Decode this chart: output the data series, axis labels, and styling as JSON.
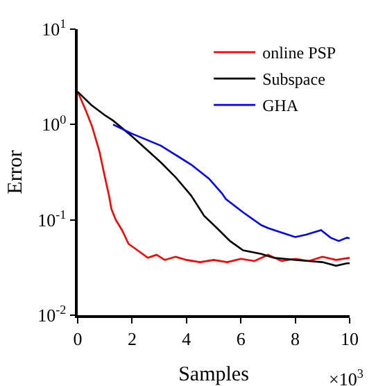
{
  "chart_data": {
    "type": "line",
    "xlabel": "Samples",
    "ylabel": "Error",
    "log": "y",
    "xlim": [
      0,
      10
    ],
    "xticks": [
      0,
      2,
      4,
      6,
      8,
      10
    ],
    "ylim": [
      0.01,
      10
    ],
    "yticks": [
      {
        "value": 0.01,
        "label": "10$^{-2}$"
      },
      {
        "value": 0.1,
        "label": "10$^{-1}$"
      },
      {
        "value": 1,
        "label": "10$^{0}$"
      },
      {
        "value": 10,
        "label": "10$^{1}$"
      }
    ],
    "annotations": [
      "×10$^{3}$"
    ],
    "grid": false,
    "legend": "top right",
    "marker": "none",
    "line_style": "solid",
    "series": [
      {
        "name": "online PSP",
        "color": "#ff0000",
        "x": [
          0,
          0.3,
          0.53,
          0.8,
          1.0,
          1.15,
          1.24,
          1.4,
          1.63,
          1.87,
          2.2,
          2.58,
          2.9,
          3.2,
          3.6,
          4.0,
          4.5,
          5.0,
          5.5,
          6.0,
          6.5,
          7.0,
          7.5,
          8.0,
          8.5,
          9.0,
          9.5,
          10
        ],
        "values": [
          2.2,
          1.4,
          0.95,
          0.52,
          0.28,
          0.18,
          0.13,
          0.1,
          0.078,
          0.056,
          0.048,
          0.04,
          0.043,
          0.038,
          0.041,
          0.038,
          0.036,
          0.038,
          0.036,
          0.039,
          0.037,
          0.043,
          0.037,
          0.039,
          0.037,
          0.041,
          0.038,
          0.04
        ]
      },
      {
        "name": "Subspace",
        "color": "#000000",
        "x": [
          0,
          0.5,
          1.0,
          1.3,
          2.0,
          3.06,
          3.6,
          4.17,
          4.65,
          5.1,
          5.6,
          6.08,
          6.75,
          7.2,
          8.0,
          8.5,
          9.0,
          9.5,
          9.9,
          10
        ],
        "values": [
          2.2,
          1.6,
          1.25,
          1.1,
          0.75,
          0.4,
          0.28,
          0.18,
          0.11,
          0.083,
          0.06,
          0.048,
          0.044,
          0.04,
          0.038,
          0.037,
          0.036,
          0.033,
          0.035,
          0.035
        ]
      },
      {
        "name": "GHA",
        "color": "#0000ff",
        "x": [
          1.3,
          2.0,
          3.06,
          3.6,
          4.17,
          4.83,
          5.3,
          5.45,
          6.08,
          6.75,
          7.0,
          7.4,
          8.0,
          8.4,
          8.95,
          9.3,
          9.6,
          9.9,
          10
        ],
        "values": [
          1.0,
          0.8,
          0.6,
          0.48,
          0.38,
          0.27,
          0.19,
          0.165,
          0.12,
          0.088,
          0.082,
          0.075,
          0.066,
          0.07,
          0.078,
          0.065,
          0.06,
          0.065,
          0.064
        ]
      }
    ]
  }
}
